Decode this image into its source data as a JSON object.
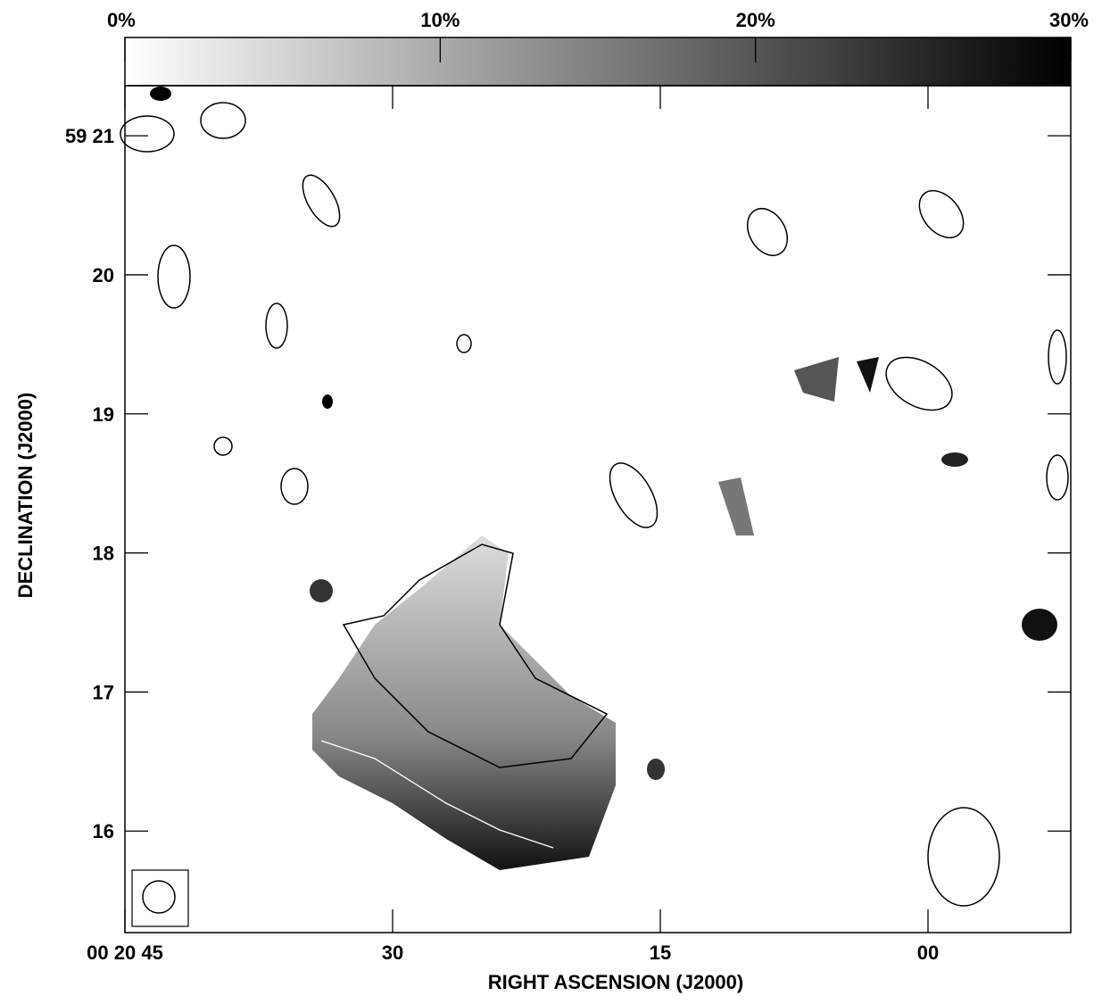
{
  "chart_data": {
    "type": "image",
    "colorbar": {
      "lim": [
        0,
        30
      ],
      "ticks": [
        {
          "value": 0,
          "label": "0%"
        },
        {
          "value": 10,
          "label": "10%"
        },
        {
          "value": 20,
          "label": "20%"
        },
        {
          "value": 30,
          "label": "30%"
        }
      ]
    },
    "xlabel": "RIGHT ASCENSION (J2000)",
    "ylabel": "DECLINATION (J2000)",
    "xlim": [
      45,
      -8
    ],
    "xticks": [
      {
        "value": 45,
        "label": "00 20 45"
      },
      30,
      15,
      {
        "value": 0,
        "label": "00"
      }
    ],
    "ylim": [
      15.27,
      21.36
    ],
    "yticks": [
      {
        "value": 21,
        "label": "59 21"
      },
      20,
      19,
      18,
      17,
      16
    ]
  }
}
